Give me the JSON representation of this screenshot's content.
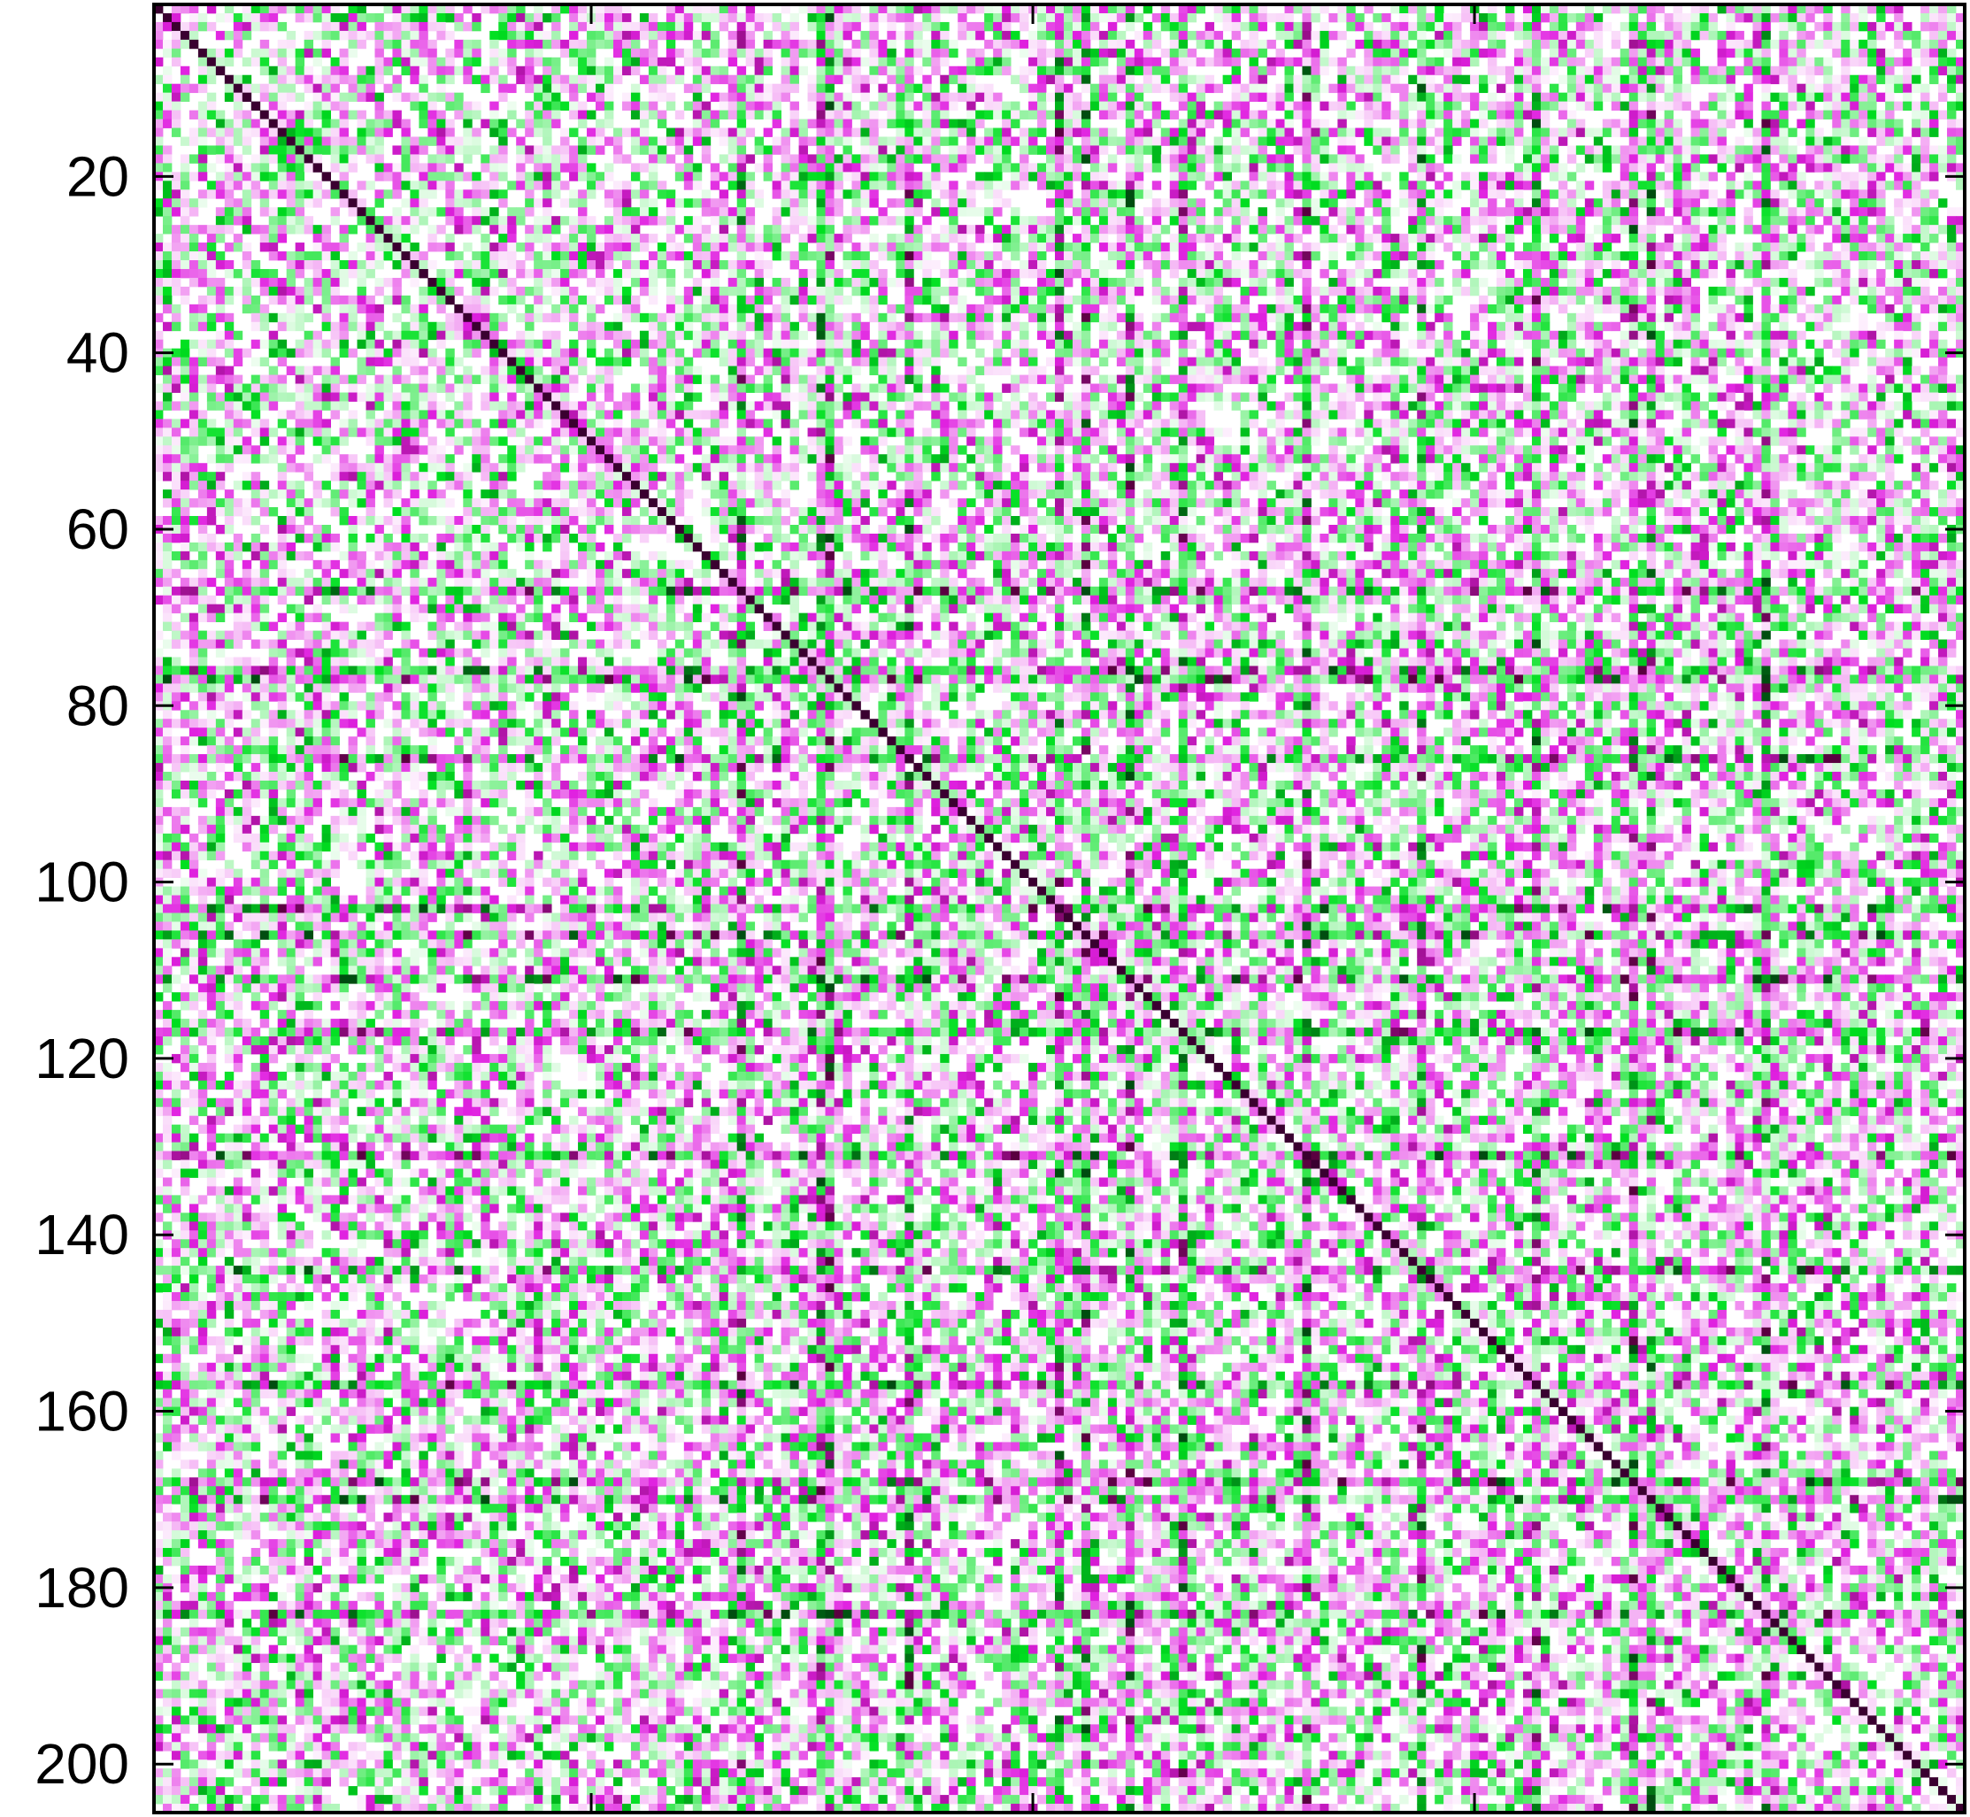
{
  "chart_data": {
    "type": "heatmap",
    "title": "",
    "xlabel": "",
    "ylabel": "",
    "n": 205,
    "xlim": [
      0.5,
      205.5
    ],
    "ylim": [
      0.5,
      205.5
    ],
    "y_ticks": [
      20,
      40,
      60,
      80,
      100,
      120,
      140,
      160,
      180,
      200
    ],
    "y_tick_labels": [
      "20",
      "40",
      "60",
      "80",
      "100",
      "120",
      "140",
      "160",
      "180",
      "200"
    ],
    "x_ticks": [
      50,
      100,
      150
    ],
    "x_tick_labels": [],
    "colormap": {
      "negative_max": "#00e020",
      "negative_dark": "#004d10",
      "zero": "#ffffff",
      "positive_max": "#e020e0",
      "positive_dark": "#5a0040"
    },
    "value_range": [
      -1,
      1
    ],
    "diagonal_value": 1,
    "strong_rows_cols": [
      67,
      77,
      86,
      103,
      117,
      144,
      157,
      168
    ],
    "strong_cols": [
      67,
      76,
      103,
      106,
      111,
      117,
      131,
      157,
      170,
      183
    ],
    "grid": false,
    "colorbar": false,
    "axis_color": "#000000"
  }
}
